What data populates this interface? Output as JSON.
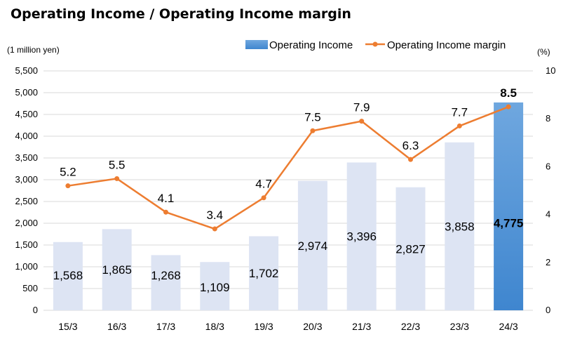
{
  "chart_data": {
    "type": "bar",
    "title": "Operating Income / Operating Income margin",
    "y_left_unit": "(1 million yen)",
    "y_right_unit": "(%)",
    "categories": [
      "15/3",
      "16/3",
      "17/3",
      "18/3",
      "19/3",
      "20/3",
      "21/3",
      "22/3",
      "23/3",
      "24/3"
    ],
    "series": [
      {
        "name": "Operating Income",
        "type": "bar",
        "axis": "left",
        "values": [
          1568,
          1865,
          1268,
          1109,
          1702,
          2974,
          3396,
          2827,
          3858,
          4775
        ],
        "labels": [
          "1,568",
          "1,865",
          "1,268",
          "1,109",
          "1,702",
          "2,974",
          "3,396",
          "2,827",
          "3,858",
          "4,775"
        ],
        "color": "#dde4f3",
        "highlight_color": "#4a8fd6"
      },
      {
        "name": "Operating Income margin",
        "type": "line",
        "axis": "right",
        "values": [
          5.2,
          5.5,
          4.1,
          3.4,
          4.7,
          7.5,
          7.9,
          6.3,
          7.7,
          8.5
        ],
        "labels": [
          "5.2",
          "5.5",
          "4.1",
          "3.4",
          "4.7",
          "7.5",
          "7.9",
          "6.3",
          "7.7",
          "8.5"
        ],
        "color": "#ed7d31"
      }
    ],
    "y_left": {
      "min": 0,
      "max": 5500,
      "ticks": [
        0,
        500,
        1000,
        1500,
        2000,
        2500,
        3000,
        3500,
        4000,
        4500,
        5000,
        5500
      ],
      "tick_labels": [
        "0",
        "500",
        "1,000",
        "1,500",
        "2,000",
        "2,500",
        "3,000",
        "3,500",
        "4,000",
        "4,500",
        "5,000",
        "5,500"
      ]
    },
    "y_right": {
      "min": 0,
      "max": 10,
      "ticks": [
        0,
        2,
        4,
        6,
        8,
        10
      ],
      "tick_labels": [
        "0",
        "2",
        "4",
        "6",
        "8",
        "10"
      ]
    },
    "grid": true,
    "legend_position": "top-right",
    "highlight_index": 9
  }
}
